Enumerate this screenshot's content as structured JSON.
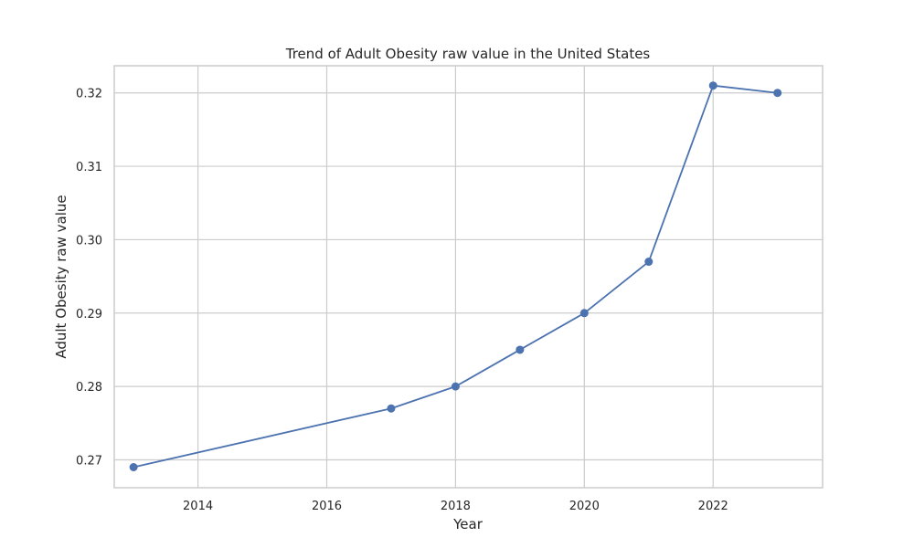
{
  "chart_data": {
    "type": "line",
    "title": "Trend of Adult Obesity raw value in the United States",
    "xlabel": "Year",
    "ylabel": "Adult Obesity raw value",
    "xlim": [
      2012.7,
      2023.7
    ],
    "ylim": [
      0.2662,
      0.3237
    ],
    "xticks": [
      2014,
      2016,
      2018,
      2020,
      2022
    ],
    "yticks": [
      0.27,
      0.28,
      0.29,
      0.3,
      0.31,
      0.32
    ],
    "xtick_labels": [
      "2014",
      "2016",
      "2018",
      "2020",
      "2022"
    ],
    "ytick_labels": [
      "0.27",
      "0.28",
      "0.29",
      "0.30",
      "0.31",
      "0.32"
    ],
    "grid": true,
    "series": [
      {
        "color": "#4c72b0",
        "marker": "circle",
        "x": [
          2013,
          2017,
          2018,
          2019,
          2020,
          2021,
          2022,
          2023
        ],
        "y": [
          0.269,
          0.277,
          0.28,
          0.285,
          0.29,
          0.297,
          0.321,
          0.32
        ]
      }
    ]
  }
}
